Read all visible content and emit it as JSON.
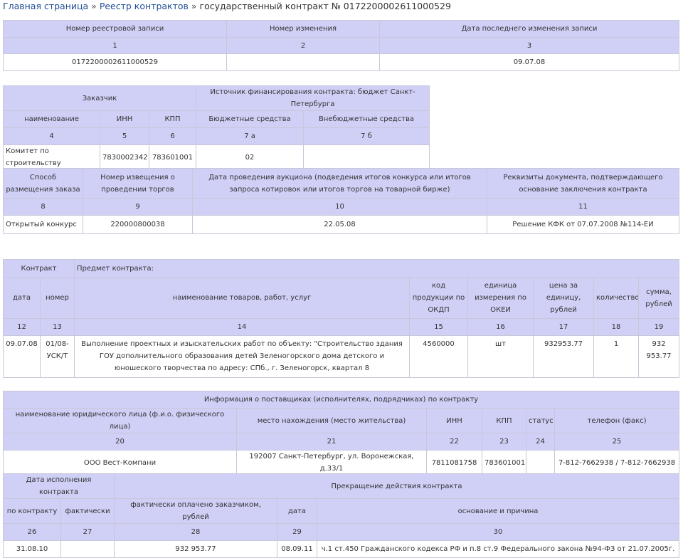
{
  "breadcrumb": {
    "home": "Главная страница",
    "registry": "Реестр контрактов",
    "current": "государственный контракт № 0172200002611000529",
    "sep": "»"
  },
  "t1": {
    "h_record_no": "Номер реестровой записи",
    "h_change_no": "Номер изменения",
    "h_last_change": "Дата последнего изменения записи",
    "n1": "1",
    "n2": "2",
    "n3": "3",
    "record_no": "0172200002611000529",
    "change_no": "",
    "last_change": "09.07.08"
  },
  "t2": {
    "h_customer": "Заказчик",
    "h_source": "Источник финансирования контракта: бюджет Санкт-Петербурга",
    "h_name": "наименование",
    "h_inn": "ИНН",
    "h_kpp": "КПП",
    "h_budget": "Бюджетные средства",
    "h_offbudget": "Внебюджетные средства",
    "n4": "4",
    "n5": "5",
    "n6": "6",
    "n7a": "7 а",
    "n7b": "7 б",
    "name": "Комитет по строительству",
    "inn": "7830002342",
    "kpp": "783601001",
    "budget": "02",
    "offbudget": ""
  },
  "t3": {
    "h_method": "Способ размещения заказа",
    "h_notice": "Номер извещения о проведении торгов",
    "h_auction_date": "Дата проведения аукциона (подведения итогов конкурса или итогов запроса котировок или итогов торгов на товарной бирже)",
    "h_doc": "Реквизиты документа, подтверждающего основание заключения контракта",
    "n8": "8",
    "n9": "9",
    "n10": "10",
    "n11": "11",
    "method": "Открытый конкурс",
    "notice": "220000800038",
    "auction_date": "22.05.08",
    "doc": "Решение КФК от 07.07.2008 №114-ЕИ"
  },
  "t4": {
    "h_contract": "Контракт",
    "h_subject": "Предмет контракта:",
    "h_date": "дата",
    "h_number": "номер",
    "h_goods": "наименование товаров, работ, услуг",
    "h_okdp": "код продукции по ОКДП",
    "h_okei": "единица измерения по ОКЕИ",
    "h_price": "цена за единицу, рублей",
    "h_qty": "количество",
    "h_sum": "сумма, рублей",
    "n12": "12",
    "n13": "13",
    "n14": "14",
    "n15": "15",
    "n16": "16",
    "n17": "17",
    "n18": "18",
    "n19": "19",
    "date": "09.07.08",
    "number": "01/08-УСК/Т",
    "goods": "Выполнение проектных и изыскательских работ по объекту: \"Строительство здания ГОУ дополнительного образования детей Зеленогорского дома детского и юношеского творчества по адресу: СПб., г. Зеленогорск, квартал 8",
    "okdp": "4560000",
    "okei": "шт",
    "price": "932953.77",
    "qty": "1",
    "sum": "932 953.77"
  },
  "t5": {
    "h_title": "Информация о поставщиках (исполнителях, подрядчиках) по контракту",
    "h_name": "наименование юридического лица (ф.и.о. физического лица)",
    "h_location": "место нахождения (место жительства)",
    "h_inn": "ИНН",
    "h_kpp": "КПП",
    "h_status": "статус",
    "h_phone": "телефон (факс)",
    "n20": "20",
    "n21": "21",
    "n22": "22",
    "n23": "23",
    "n24": "24",
    "n25": "25",
    "name": "ООО Вест-Компани",
    "location": "192007 Санкт-Петербург, ул. Воронежская, д.33/1",
    "inn": "7811081758",
    "kpp": "783601001",
    "status": "",
    "phone": "7-812-7662938 / 7-812-7662938"
  },
  "t6": {
    "h_exec_date": "Дата исполнения контракта",
    "h_termination": "Прекращение действия контракта",
    "h_by_contract": "по контракту",
    "h_actual": "фактически",
    "h_paid": "фактически оплачено заказчиком, рублей",
    "h_date": "дата",
    "h_reason": "основание и причина",
    "n26": "26",
    "n27": "27",
    "n28": "28",
    "n29": "29",
    "n30": "30",
    "by_contract": "31.08.10",
    "actual": "",
    "paid": "932 953.77",
    "date": "08.09.11",
    "reason": "ч.1 ст.450 Гражданского кодекса РФ и п.8 ст.9 Федерального закона №94-ФЗ от 21.07.2005г."
  }
}
